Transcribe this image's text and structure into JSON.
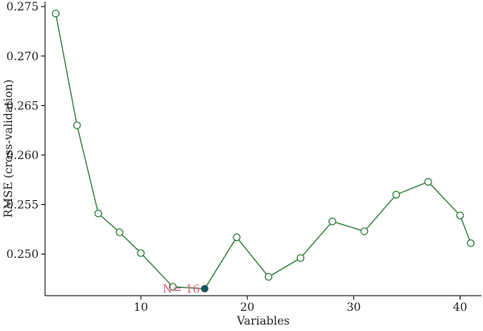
{
  "chart_data": {
    "type": "line",
    "xlabel": "Variables",
    "ylabel": "RMSE (cross-validation)",
    "xlim": [
      1,
      42
    ],
    "ylim": [
      0.2458,
      0.2755
    ],
    "xticks": [
      10,
      20,
      30,
      40
    ],
    "yticks": [
      0.25,
      0.255,
      0.26,
      0.265,
      0.27,
      0.275
    ],
    "ytick_labels": [
      "0.250",
      "0.255",
      "0.260",
      "0.265",
      "0.270",
      "0.275"
    ],
    "series": [
      {
        "x": [
          2,
          4,
          6,
          8,
          10,
          13,
          16,
          19,
          22,
          25,
          28,
          31,
          34,
          37,
          40,
          41
        ],
        "values": [
          0.2743,
          0.263,
          0.2541,
          0.2522,
          0.2501,
          0.2467,
          0.2465,
          0.2517,
          0.2477,
          0.2496,
          0.2533,
          0.2523,
          0.256,
          0.2573,
          0.2539,
          0.2511
        ],
        "color": "#2e7d3a",
        "marker": "open-circle"
      }
    ],
    "highlight": {
      "x": 16,
      "y": 0.2465,
      "color": "#17585e"
    },
    "annotation": {
      "text": "N= 16",
      "color": "#e0607a",
      "x": 16,
      "y": 0.2465
    },
    "grid": false
  }
}
